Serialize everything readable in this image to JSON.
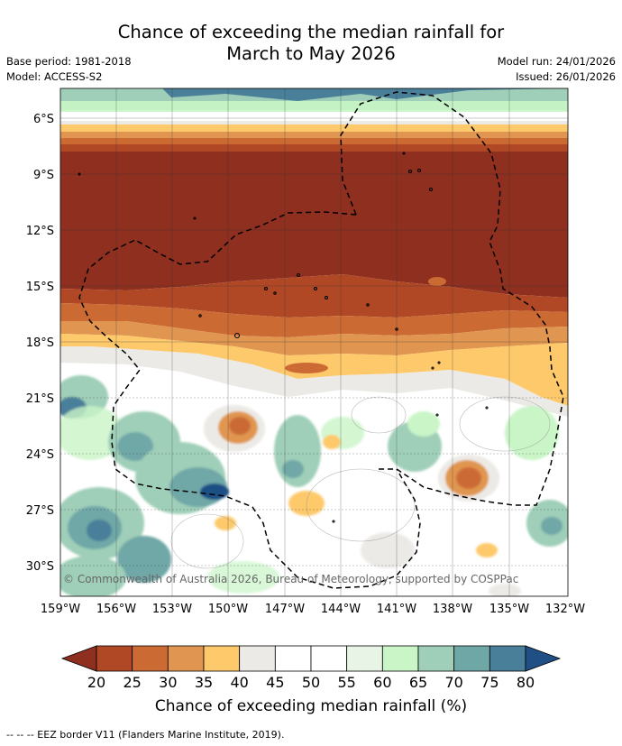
{
  "title": {
    "line1": "Chance of exceeding the median rainfall for",
    "line2": "March to May 2026"
  },
  "meta": {
    "base_period": "Base period: 1981-2018",
    "model": "Model: ACCESS-S2",
    "model_run": "Model run: 24/01/2026",
    "issued": "Issued: 26/01/2026"
  },
  "map": {
    "lat_labels": [
      "6°S",
      "9°S",
      "12°S",
      "15°S",
      "18°S",
      "21°S",
      "24°S",
      "27°S",
      "30°S"
    ],
    "lon_labels": [
      "159°W",
      "156°W",
      "153°W",
      "150°W",
      "147°W",
      "144°W",
      "141°W",
      "138°W",
      "135°W",
      "132°W"
    ],
    "copyright": "© Commonwealth of Australia 2026, Bureau of Meteorology, supported by COSPPac"
  },
  "colorbar": {
    "ticks": [
      "20",
      "25",
      "30",
      "35",
      "40",
      "45",
      "50",
      "55",
      "60",
      "65",
      "70",
      "75",
      "80"
    ],
    "colors": [
      "#8e2f1f",
      "#b04826",
      "#cc6a34",
      "#e09650",
      "#fdc96b",
      "#eceae6",
      "#ffffff",
      "#ffffff",
      "#e8f4e6",
      "#c9f5c7",
      "#9fcfb8",
      "#6fa7a7",
      "#4a7f9a",
      "#1f4f85"
    ],
    "label": "Chance of exceeding median rainfall (%)"
  },
  "footer": "--  --  -- EEZ border V11 (Flanders Marine Institute, 2019)."
}
